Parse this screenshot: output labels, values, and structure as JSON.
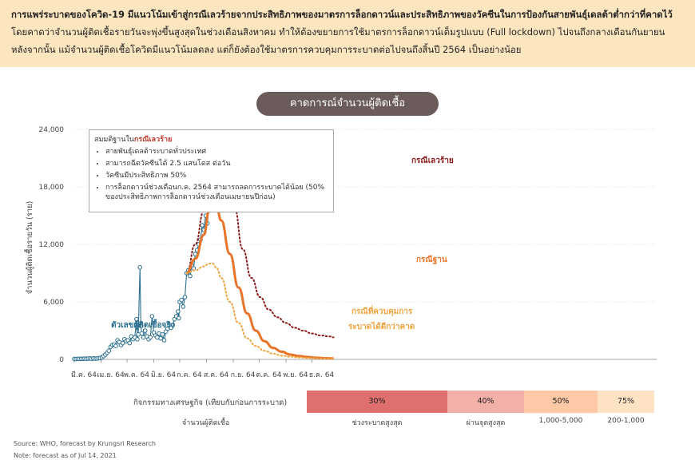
{
  "header": {
    "bold_text": "การแพร่ระบาดของโควิด-19 มีแนวโน้มเข้าสู่กรณีเลวร้ายจากประสิทธิภาพของมาตรการล็อกดาวน์และประสิทธิภาพของวัคซีนในการป้องกันสายพันธุ์เดลต้าต่ำกว่าที่คาดไว้",
    "normal_text": " โดยคาดว่าจำนวนผู้ติดเชื้อรายวันจะพุ่งขึ้นสูงสุดในช่วงเดือนสิงหาคม ทำให้ต้องขยายการใช้มาตรการล็อกดาวน์เต็มรูปแบบ (Full lockdown) ไปจนถึงกลางเดือนกันยายน หลังจากนั้น แม้จำนวนผู้ติดเชื้อโควิดมีแนวโน้มลดลง แต่ก็ยังต้องใช้มาตรการควบคุมการระบาดต่อไปจนถึงสิ้นปี 2564 เป็นอย่างน้อย"
  },
  "chart_data": {
    "type": "line",
    "title": "คาดการณ์จำนวนผู้ติดเชื้อ",
    "ylabel": "จำนวนผู้ติดเชื้อรายวัน (ราย)",
    "xlabel": "",
    "ylim": [
      0,
      24000
    ],
    "yticks": [
      0,
      6000,
      12000,
      18000,
      24000
    ],
    "ytick_labels": [
      "0",
      "6,000",
      "12,000",
      "18,000",
      "24,000"
    ],
    "x_categories": [
      "มี.ค. 64",
      "เม.ย. 64",
      "พ.ค. 64",
      "มิ.ย. 64",
      "ก.ค. 64",
      "ส.ค. 64",
      "ก.ย. 64",
      "ต.ค. 64",
      "พ.ย. 64",
      "ธ.ค. 64"
    ],
    "x_unit": "days since 1 Mar 2021",
    "series": [
      {
        "name": "ตัวเลขผู้ติดเชื้อจริง",
        "color": "#2a6f8f",
        "style": "markers",
        "points": [
          [
            0,
            50
          ],
          [
            2,
            40
          ],
          [
            4,
            60
          ],
          [
            6,
            50
          ],
          [
            8,
            70
          ],
          [
            10,
            60
          ],
          [
            12,
            80
          ],
          [
            14,
            60
          ],
          [
            16,
            90
          ],
          [
            18,
            100
          ],
          [
            20,
            70
          ],
          [
            22,
            110
          ],
          [
            24,
            80
          ],
          [
            26,
            90
          ],
          [
            28,
            120
          ],
          [
            30,
            150
          ],
          [
            32,
            220
          ],
          [
            34,
            350
          ],
          [
            36,
            500
          ],
          [
            38,
            700
          ],
          [
            40,
            900
          ],
          [
            42,
            1300
          ],
          [
            44,
            1500
          ],
          [
            46,
            1550
          ],
          [
            48,
            1400
          ],
          [
            50,
            2000
          ],
          [
            52,
            1800
          ],
          [
            54,
            1500
          ],
          [
            56,
            1700
          ],
          [
            58,
            2100
          ],
          [
            60,
            1900
          ],
          [
            62,
            2000
          ],
          [
            64,
            1700
          ],
          [
            66,
            2400
          ],
          [
            68,
            2100
          ],
          [
            70,
            2300
          ],
          [
            72,
            4200
          ],
          [
            73,
            2100
          ],
          [
            74,
            2600
          ],
          [
            76,
            9600
          ],
          [
            77,
            3500
          ],
          [
            78,
            2700
          ],
          [
            80,
            2300
          ],
          [
            82,
            3000
          ],
          [
            84,
            2400
          ],
          [
            86,
            2100
          ],
          [
            88,
            2300
          ],
          [
            90,
            4500
          ],
          [
            92,
            2800
          ],
          [
            94,
            2500
          ],
          [
            96,
            2300
          ],
          [
            98,
            2700
          ],
          [
            100,
            2200
          ],
          [
            102,
            2600
          ],
          [
            104,
            2000
          ],
          [
            106,
            2900
          ],
          [
            108,
            3200
          ],
          [
            110,
            3500
          ],
          [
            112,
            3300
          ],
          [
            114,
            3600
          ],
          [
            116,
            4200
          ],
          [
            118,
            4500
          ],
          [
            120,
            5000
          ],
          [
            121,
            4300
          ],
          [
            122,
            6000
          ],
          [
            124,
            6200
          ],
          [
            126,
            5500
          ],
          [
            128,
            6500
          ],
          [
            130,
            9000
          ],
          [
            132,
            9300
          ],
          [
            134,
            8700
          ],
          [
            136,
            9800
          ],
          [
            138,
            9500
          ],
          [
            140,
            11000
          ],
          [
            142,
            11400
          ],
          [
            144,
            12000
          ],
          [
            146,
            12500
          ],
          [
            148,
            14000
          ],
          [
            150,
            13500
          ],
          [
            152,
            15000
          ],
          [
            154,
            14200
          ],
          [
            156,
            16000
          ],
          [
            158,
            17000
          ],
          [
            160,
            17500
          ],
          [
            161,
            18500
          ],
          [
            162,
            19000
          ],
          [
            163,
            20000
          ],
          [
            164,
            21000
          ],
          [
            165,
            20400
          ]
        ]
      },
      {
        "name": "กรณีเลวร้าย",
        "color": "#8b1a1a",
        "style": "dotted",
        "points": [
          [
            130,
            9000
          ],
          [
            140,
            12000
          ],
          [
            150,
            15500
          ],
          [
            158,
            20000
          ],
          [
            163,
            22500
          ],
          [
            168,
            23000
          ],
          [
            175,
            21000
          ],
          [
            185,
            16000
          ],
          [
            195,
            11500
          ],
          [
            205,
            8500
          ],
          [
            215,
            6500
          ],
          [
            225,
            5200
          ],
          [
            235,
            4400
          ],
          [
            245,
            3800
          ],
          [
            255,
            3300
          ],
          [
            265,
            3000
          ],
          [
            275,
            2700
          ],
          [
            285,
            2500
          ],
          [
            295,
            2400
          ],
          [
            300,
            2300
          ]
        ]
      },
      {
        "name": "กรณีฐาน",
        "color": "#e8742a",
        "style": "solid",
        "points": [
          [
            130,
            9000
          ],
          [
            140,
            10500
          ],
          [
            150,
            13000
          ],
          [
            156,
            15500
          ],
          [
            160,
            16000
          ],
          [
            165,
            15700
          ],
          [
            170,
            14500
          ],
          [
            180,
            11000
          ],
          [
            190,
            7500
          ],
          [
            200,
            4800
          ],
          [
            210,
            3000
          ],
          [
            220,
            1900
          ],
          [
            230,
            1200
          ],
          [
            240,
            800
          ],
          [
            250,
            500
          ],
          [
            260,
            350
          ],
          [
            270,
            250
          ],
          [
            280,
            180
          ],
          [
            290,
            130
          ],
          [
            300,
            100
          ]
        ]
      },
      {
        "name": "กรณีที่ควบคุมการระบาดได้ดีกว่าคาด",
        "color": "#f0a540",
        "style": "dotted",
        "points": [
          [
            130,
            9000
          ],
          [
            140,
            9300
          ],
          [
            150,
            9700
          ],
          [
            156,
            10000
          ],
          [
            160,
            10000
          ],
          [
            165,
            9500
          ],
          [
            170,
            8500
          ],
          [
            180,
            6000
          ],
          [
            190,
            3800
          ],
          [
            200,
            2200
          ],
          [
            210,
            1400
          ],
          [
            220,
            900
          ],
          [
            230,
            600
          ],
          [
            240,
            400
          ],
          [
            250,
            280
          ],
          [
            260,
            200
          ],
          [
            270,
            150
          ],
          [
            280,
            120
          ],
          [
            290,
            100
          ],
          [
            300,
            90
          ]
        ]
      }
    ],
    "annotations": {
      "actual_label": "ตัวเลขผู้ติดเชื้อจริง",
      "worst_label": "กรณีเลวร้าย",
      "base_label": "กรณีฐาน",
      "better_label_line1": "กรณีที่ควบคุมการ",
      "better_label_line2": "ระบาดได้ดีกว่าคาด"
    }
  },
  "legend_box": {
    "title_prefix": "สมมติฐานใน",
    "title_red": "กรณีเลวร้าย",
    "items": [
      "สายพันธุ์เดลต้าระบาดทั่วประเทศ",
      "สามารถฉีดวัคซีนได้ 2.5 แสนโดส ต่อวัน",
      "วัคซีนมีประสิทธิภาพ 50%",
      "การล็อกดาวน์ช่วงเดือนก.ค. 2564 สามารถลดการระบาดได้น้อย (50% ของประสิทธิภาพการล็อกดาวน์ช่วงเดือนเมษายนปีก่อน)"
    ]
  },
  "bottom": {
    "econ_label": "กิจกรรมทางเศรษฐกิจ (เทียบกับก่อนการระบาด)",
    "cases_label": "จำนวนผู้ติดเชื้อ",
    "segments": [
      {
        "pct": "30%",
        "color": "#e07070",
        "case": "ช่วงระบาดสูงสุด"
      },
      {
        "pct": "40%",
        "color": "#f1b0a8",
        "case": "ผ่านจุดสูงสุด"
      },
      {
        "pct": "50%",
        "color": "#fdc9a6",
        "case": "1,000-5,000"
      },
      {
        "pct": "75%",
        "color": "#fde3c4",
        "case": "200-1,000"
      }
    ]
  },
  "footer": {
    "source": "Source: WHO, forecast by Krungsri Research",
    "note": "Note: forecast as of Jul 14, 2021"
  }
}
